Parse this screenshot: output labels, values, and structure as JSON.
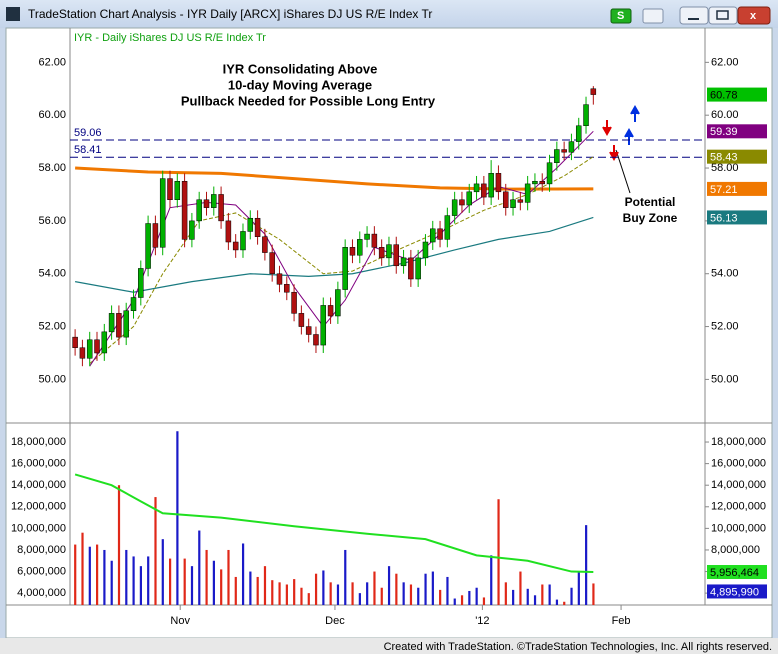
{
  "window": {
    "title": "TradeStation Chart Analysis - IYR Daily [ARCX] iShares DJ US R/E Index Tr"
  },
  "chart_data": [
    {
      "type": "candlestick",
      "legend_text": "IYR - Daily  iShares DJ US R/E Index Tr",
      "annotation": [
        "IYR Consolidating Above",
        "10-day Moving Average",
        "Pullback Needed for Possible Long Entry"
      ],
      "buy_zone_text": [
        "Potential",
        "Buy Zone"
      ],
      "up_color": "#00b000",
      "down_color": "#b01010",
      "open": [
        51.6,
        51.2,
        50.8,
        51.5,
        51.0,
        51.8,
        52.5,
        51.6,
        52.6,
        53.1,
        54.2,
        55.9,
        55.0,
        57.6,
        56.8,
        57.5,
        55.3,
        56.0,
        56.8,
        56.5,
        57.0,
        56.0,
        55.2,
        54.9,
        55.6,
        56.1,
        55.4,
        54.8,
        54.0,
        53.6,
        53.3,
        52.5,
        52.0,
        51.7,
        51.3,
        52.8,
        52.4,
        53.4,
        55.0,
        54.7,
        55.3,
        55.5,
        55.0,
        54.6,
        55.1,
        54.3,
        54.6,
        53.8,
        54.6,
        55.2,
        55.7,
        55.3,
        56.2,
        56.8,
        56.6,
        57.1,
        57.4,
        56.9,
        57.8,
        57.1,
        56.5,
        56.8,
        56.7,
        57.4,
        57.5,
        57.4,
        58.2,
        58.7,
        58.6,
        59.0,
        59.6,
        61.0
      ],
      "high": [
        51.9,
        51.5,
        51.8,
        51.8,
        52.1,
        52.8,
        52.8,
        52.9,
        53.4,
        54.5,
        56.2,
        56.2,
        57.9,
        57.9,
        57.8,
        57.8,
        56.3,
        57.1,
        57.1,
        57.3,
        57.3,
        56.3,
        55.5,
        55.9,
        56.4,
        56.4,
        55.7,
        55.1,
        54.3,
        53.9,
        53.6,
        52.8,
        52.3,
        52.0,
        53.1,
        53.1,
        53.7,
        55.3,
        55.3,
        55.6,
        55.8,
        55.8,
        55.3,
        55.4,
        55.4,
        54.9,
        54.9,
        54.9,
        55.5,
        56.0,
        56.0,
        56.5,
        57.1,
        57.1,
        57.4,
        57.7,
        57.7,
        58.3,
        58.1,
        57.4,
        57.1,
        57.1,
        57.7,
        57.8,
        57.8,
        58.5,
        59.0,
        59.0,
        59.3,
        59.9,
        60.7,
        61.1
      ],
      "low": [
        50.9,
        50.5,
        50.5,
        50.7,
        50.7,
        51.5,
        51.3,
        51.3,
        52.3,
        52.8,
        53.9,
        54.7,
        54.7,
        56.5,
        56.5,
        55.0,
        55.0,
        55.7,
        56.2,
        56.2,
        55.7,
        54.9,
        54.6,
        54.6,
        55.3,
        55.1,
        54.5,
        53.7,
        53.3,
        53.0,
        52.2,
        51.7,
        51.4,
        51.0,
        51.0,
        52.1,
        52.1,
        53.1,
        54.4,
        54.4,
        55.0,
        54.7,
        54.3,
        54.3,
        54.0,
        54.0,
        53.5,
        53.5,
        54.3,
        54.9,
        55.0,
        55.0,
        55.9,
        56.3,
        56.3,
        56.8,
        56.6,
        56.6,
        56.8,
        56.2,
        56.2,
        56.4,
        56.4,
        57.1,
        57.1,
        57.1,
        57.9,
        58.3,
        58.3,
        58.7,
        59.3,
        60.4
      ],
      "close": [
        51.2,
        50.8,
        51.5,
        51.0,
        51.8,
        52.5,
        51.6,
        52.6,
        53.1,
        54.2,
        55.9,
        55.0,
        57.6,
        56.8,
        57.5,
        55.3,
        56.0,
        56.8,
        56.5,
        57.0,
        56.0,
        55.2,
        54.9,
        55.6,
        56.1,
        55.4,
        54.8,
        54.0,
        53.6,
        53.3,
        52.5,
        52.0,
        51.7,
        51.3,
        52.8,
        52.4,
        53.4,
        55.0,
        54.7,
        55.3,
        55.5,
        55.0,
        54.6,
        55.1,
        54.3,
        54.6,
        53.8,
        54.6,
        55.2,
        55.7,
        55.3,
        56.2,
        56.8,
        56.6,
        57.1,
        57.4,
        56.9,
        57.8,
        57.1,
        56.5,
        56.8,
        56.7,
        57.4,
        57.5,
        57.4,
        58.2,
        58.7,
        58.6,
        59.0,
        59.6,
        60.4,
        60.78
      ],
      "last_close_color": "#00c000",
      "series": [
        {
          "color": "#f07800",
          "width": 3,
          "dash": false,
          "x": [
            0,
            10,
            20,
            30,
            40,
            50,
            60,
            71
          ],
          "values": [
            58.0,
            57.85,
            57.8,
            57.6,
            57.4,
            57.25,
            57.2,
            57.21
          ]
        },
        {
          "color": "#1a7a80",
          "width": 1.2,
          "dash": false,
          "x": [
            0,
            8,
            16,
            24,
            32,
            38,
            45,
            52,
            58,
            65,
            71
          ],
          "values": [
            53.7,
            53.3,
            53.7,
            54.0,
            53.9,
            54.0,
            54.4,
            54.9,
            55.3,
            55.6,
            56.13
          ]
        },
        {
          "color": "#8a8a00",
          "width": 1,
          "dash": true,
          "x": [
            2,
            8,
            12,
            17,
            22,
            28,
            34,
            38,
            45,
            50,
            56,
            62,
            67,
            71
          ],
          "values": [
            50.6,
            52.0,
            54.0,
            56.0,
            56.3,
            55.3,
            54.0,
            54.1,
            55.0,
            55.6,
            56.4,
            57.0,
            57.7,
            58.43
          ]
        },
        {
          "color": "#800080",
          "width": 1,
          "dash": false,
          "x": [
            2,
            8,
            13,
            18,
            22,
            26,
            30,
            34,
            37,
            41,
            46,
            50,
            54,
            58,
            62,
            66,
            71
          ],
          "values": [
            50.5,
            53.0,
            56.5,
            56.7,
            56.6,
            55.5,
            53.5,
            52.0,
            53.0,
            55.0,
            54.5,
            55.5,
            56.6,
            57.3,
            57.0,
            58.0,
            59.39
          ]
        }
      ],
      "hlines": [
        {
          "value": 59.06,
          "label": "59.06"
        },
        {
          "value": 58.41,
          "label": "58.41"
        }
      ],
      "hline_color": "#000080",
      "xlim": [
        -0.7,
        86.3
      ],
      "ylim": [
        48.35,
        63.3
      ],
      "yticks": [
        {
          "value": 50,
          "label": "50.00"
        },
        {
          "value": 52,
          "label": "52.00"
        },
        {
          "value": 54,
          "label": "54.00"
        },
        {
          "value": 56,
          "label": "56.00"
        },
        {
          "value": 58,
          "label": "58.00"
        },
        {
          "value": 60,
          "label": "60.00"
        },
        {
          "value": 62,
          "label": "62.00"
        }
      ]
    },
    {
      "type": "volume",
      "up_color": "#1a1ac8",
      "down_color": "#e02818",
      "values": [
        8500000,
        9600000,
        8300000,
        8500000,
        8000000,
        7000000,
        14000000,
        8000000,
        7400000,
        6500000,
        7400000,
        12900000,
        9000000,
        7200000,
        19000000,
        7200000,
        6500000,
        9800000,
        8000000,
        7000000,
        6200000,
        8000000,
        5500000,
        8600000,
        6000000,
        5500000,
        6500000,
        5200000,
        5000000,
        4800000,
        5300000,
        4500000,
        4000000,
        5800000,
        6100000,
        5000000,
        4800000,
        8000000,
        5000000,
        4000000,
        5000000,
        6000000,
        4500000,
        6500000,
        5800000,
        5000000,
        4800000,
        4500000,
        5800000,
        6000000,
        4300000,
        5500000,
        3500000,
        3800000,
        4200000,
        4500000,
        3600000,
        7500000,
        12700000,
        5000000,
        4300000,
        6000000,
        4400000,
        3800000,
        4800000,
        4800000,
        3400000,
        3200000,
        4500000,
        6000000,
        10300000,
        4895990
      ],
      "value_labels": [
        null,
        null,
        null,
        null,
        null,
        null,
        null,
        null,
        null,
        null,
        null,
        null,
        null,
        null,
        null,
        null,
        null,
        null,
        null,
        null,
        null,
        null,
        null,
        null,
        null,
        null,
        null,
        null,
        null,
        null,
        null,
        null,
        null,
        null,
        null,
        null,
        null,
        null,
        null,
        null,
        null,
        null,
        null,
        null,
        null,
        null,
        null,
        null,
        null,
        null,
        null,
        null,
        null,
        null,
        null,
        null,
        null,
        null,
        null,
        null,
        null,
        null,
        null,
        null,
        null,
        null,
        null,
        null,
        null,
        null,
        null,
        "4,895,990"
      ],
      "average": {
        "color": "#20e020",
        "x": [
          0,
          5,
          9,
          12,
          20,
          30,
          40,
          48,
          55,
          62,
          68,
          71
        ],
        "values": [
          15000000,
          14000000,
          12500000,
          11400000,
          11000000,
          10200000,
          9500000,
          9000000,
          7500000,
          7000000,
          6000000,
          5956464
        ],
        "last_label": "5,956,464"
      },
      "xlim": [
        -0.7,
        86.3
      ],
      "ylim": [
        2900000,
        19300000
      ],
      "xticks": [
        {
          "value": 14.4,
          "label": "Nov"
        },
        {
          "value": 35.6,
          "label": "Dec"
        },
        {
          "value": 55.8,
          "label": "'12"
        },
        {
          "value": 74.8,
          "label": "Feb"
        }
      ],
      "yticks": [
        {
          "value": 4000000,
          "label": "4,000,000"
        },
        {
          "value": 6000000,
          "label": "6,000,000"
        },
        {
          "value": 8000000,
          "label": "8,000,000"
        },
        {
          "value": 10000000,
          "label": "10,000,000"
        },
        {
          "value": 12000000,
          "label": "12,000,000"
        },
        {
          "value": 14000000,
          "label": "14,000,000"
        },
        {
          "value": 16000000,
          "label": "16,000,000"
        },
        {
          "value": 18000000,
          "label": "18,000,000"
        }
      ]
    }
  ],
  "footer": "Created with TradeStation. ©TradeStation Technologies, Inc. All rights reserved."
}
